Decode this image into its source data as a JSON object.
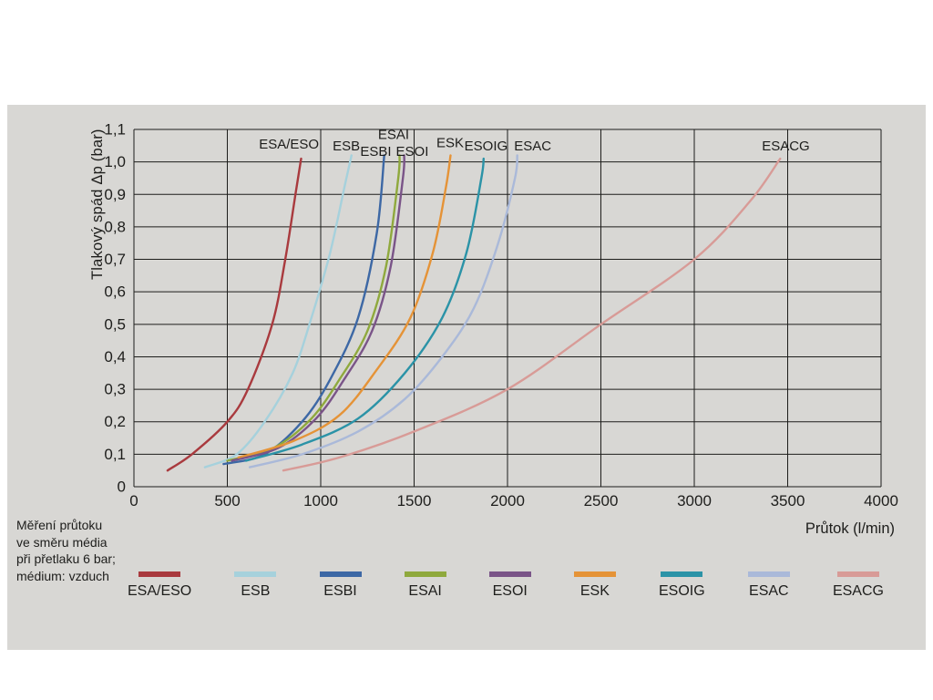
{
  "panel": {
    "background": "#d8d7d4"
  },
  "note_lines": [
    "Měření průtoku",
    "ve směru média",
    "při přetlaku 6 bar;",
    "médium: vzduch"
  ],
  "chart_data": {
    "type": "line",
    "title": "",
    "xlabel": "Průtok (l/min)",
    "ylabel": "Tlakový spád Δp (bar)",
    "xlim": [
      0,
      4000
    ],
    "ylim": [
      0,
      1.1
    ],
    "grid": true,
    "grid_color": "#1d1d1b",
    "text_color": "#1d1d1b",
    "legend_position": "bottom",
    "xticks": {
      "values": [
        0,
        500,
        1000,
        1500,
        2000,
        2500,
        3000,
        3500,
        4000
      ],
      "labels": [
        "0",
        "500",
        "1000",
        "1500",
        "2000",
        "2500",
        "3000",
        "3500",
        "4000"
      ]
    },
    "yticks": {
      "values": [
        0,
        0.1,
        0.2,
        0.3,
        0.4,
        0.5,
        0.6,
        0.7,
        0.8,
        0.9,
        1.0,
        1.1
      ],
      "labels": [
        "0",
        "0,1",
        "0,2",
        "0,3",
        "0,4",
        "0,5",
        "0,6",
        "0,7",
        "0,8",
        "0,9",
        "1,0",
        "1,1"
      ]
    },
    "series": [
      {
        "name": "ESA/ESO",
        "color": "#a93a3e",
        "points": [
          [
            180,
            0.05
          ],
          [
            310,
            0.1
          ],
          [
            500,
            0.2
          ],
          [
            610,
            0.3
          ],
          [
            740,
            0.5
          ],
          [
            810,
            0.7
          ],
          [
            870,
            0.92
          ],
          [
            895,
            1.01
          ]
        ]
      },
      {
        "name": "ESB",
        "color": "#a6d1dc",
        "points": [
          [
            380,
            0.06
          ],
          [
            550,
            0.1
          ],
          [
            700,
            0.2
          ],
          [
            850,
            0.35
          ],
          [
            950,
            0.52
          ],
          [
            1050,
            0.72
          ],
          [
            1130,
            0.93
          ],
          [
            1165,
            1.02
          ]
        ]
      },
      {
        "name": "ESBI",
        "color": "#3d68a5",
        "points": [
          [
            480,
            0.07
          ],
          [
            700,
            0.1
          ],
          [
            900,
            0.2
          ],
          [
            1050,
            0.33
          ],
          [
            1200,
            0.52
          ],
          [
            1300,
            0.78
          ],
          [
            1340,
            1.02
          ]
        ]
      },
      {
        "name": "ESAI",
        "color": "#8fa93d",
        "points": [
          [
            500,
            0.08
          ],
          [
            750,
            0.12
          ],
          [
            950,
            0.21
          ],
          [
            1100,
            0.33
          ],
          [
            1250,
            0.48
          ],
          [
            1350,
            0.68
          ],
          [
            1415,
            0.95
          ],
          [
            1422,
            1.02
          ]
        ]
      },
      {
        "name": "ESOI",
        "color": "#7a5488",
        "points": [
          [
            525,
            0.08
          ],
          [
            775,
            0.12
          ],
          [
            975,
            0.21
          ],
          [
            1125,
            0.33
          ],
          [
            1275,
            0.48
          ],
          [
            1375,
            0.68
          ],
          [
            1440,
            0.95
          ],
          [
            1447,
            1.02
          ]
        ]
      },
      {
        "name": "ESK",
        "color": "#e59337",
        "points": [
          [
            560,
            0.09
          ],
          [
            850,
            0.14
          ],
          [
            1100,
            0.22
          ],
          [
            1300,
            0.36
          ],
          [
            1480,
            0.52
          ],
          [
            1600,
            0.72
          ],
          [
            1670,
            0.92
          ],
          [
            1695,
            1.02
          ]
        ]
      },
      {
        "name": "ESOIG",
        "color": "#2b93a7",
        "points": [
          [
            600,
            0.08
          ],
          [
            900,
            0.13
          ],
          [
            1200,
            0.21
          ],
          [
            1450,
            0.35
          ],
          [
            1650,
            0.52
          ],
          [
            1780,
            0.72
          ],
          [
            1860,
            0.95
          ],
          [
            1872,
            1.01
          ]
        ]
      },
      {
        "name": "ESAC",
        "color": "#aab9d9",
        "points": [
          [
            620,
            0.06
          ],
          [
            900,
            0.1
          ],
          [
            1200,
            0.17
          ],
          [
            1450,
            0.27
          ],
          [
            1650,
            0.4
          ],
          [
            1820,
            0.55
          ],
          [
            1950,
            0.75
          ],
          [
            2040,
            0.95
          ],
          [
            2052,
            1.02
          ]
        ]
      },
      {
        "name": "ESACG",
        "color": "#d89b97",
        "points": [
          [
            800,
            0.05
          ],
          [
            1100,
            0.09
          ],
          [
            1500,
            0.17
          ],
          [
            2000,
            0.3
          ],
          [
            2500,
            0.5
          ],
          [
            3000,
            0.7
          ],
          [
            3300,
            0.88
          ],
          [
            3460,
            1.01
          ]
        ]
      }
    ],
    "annotations": [
      {
        "text": "ESA/ESO",
        "x": 830,
        "y": 1.055
      },
      {
        "text": "ESB",
        "x": 1137,
        "y": 1.05
      },
      {
        "text": "ESBI",
        "x": 1295,
        "y": 1.033
      },
      {
        "text": "ESAI",
        "x": 1390,
        "y": 1.085
      },
      {
        "text": "ESOI",
        "x": 1490,
        "y": 1.033
      },
      {
        "text": "ESK",
        "x": 1693,
        "y": 1.06
      },
      {
        "text": "ESOIG",
        "x": 1885,
        "y": 1.05
      },
      {
        "text": "ESAC",
        "x": 2135,
        "y": 1.05
      },
      {
        "text": "ESACG",
        "x": 3490,
        "y": 1.05
      }
    ]
  }
}
